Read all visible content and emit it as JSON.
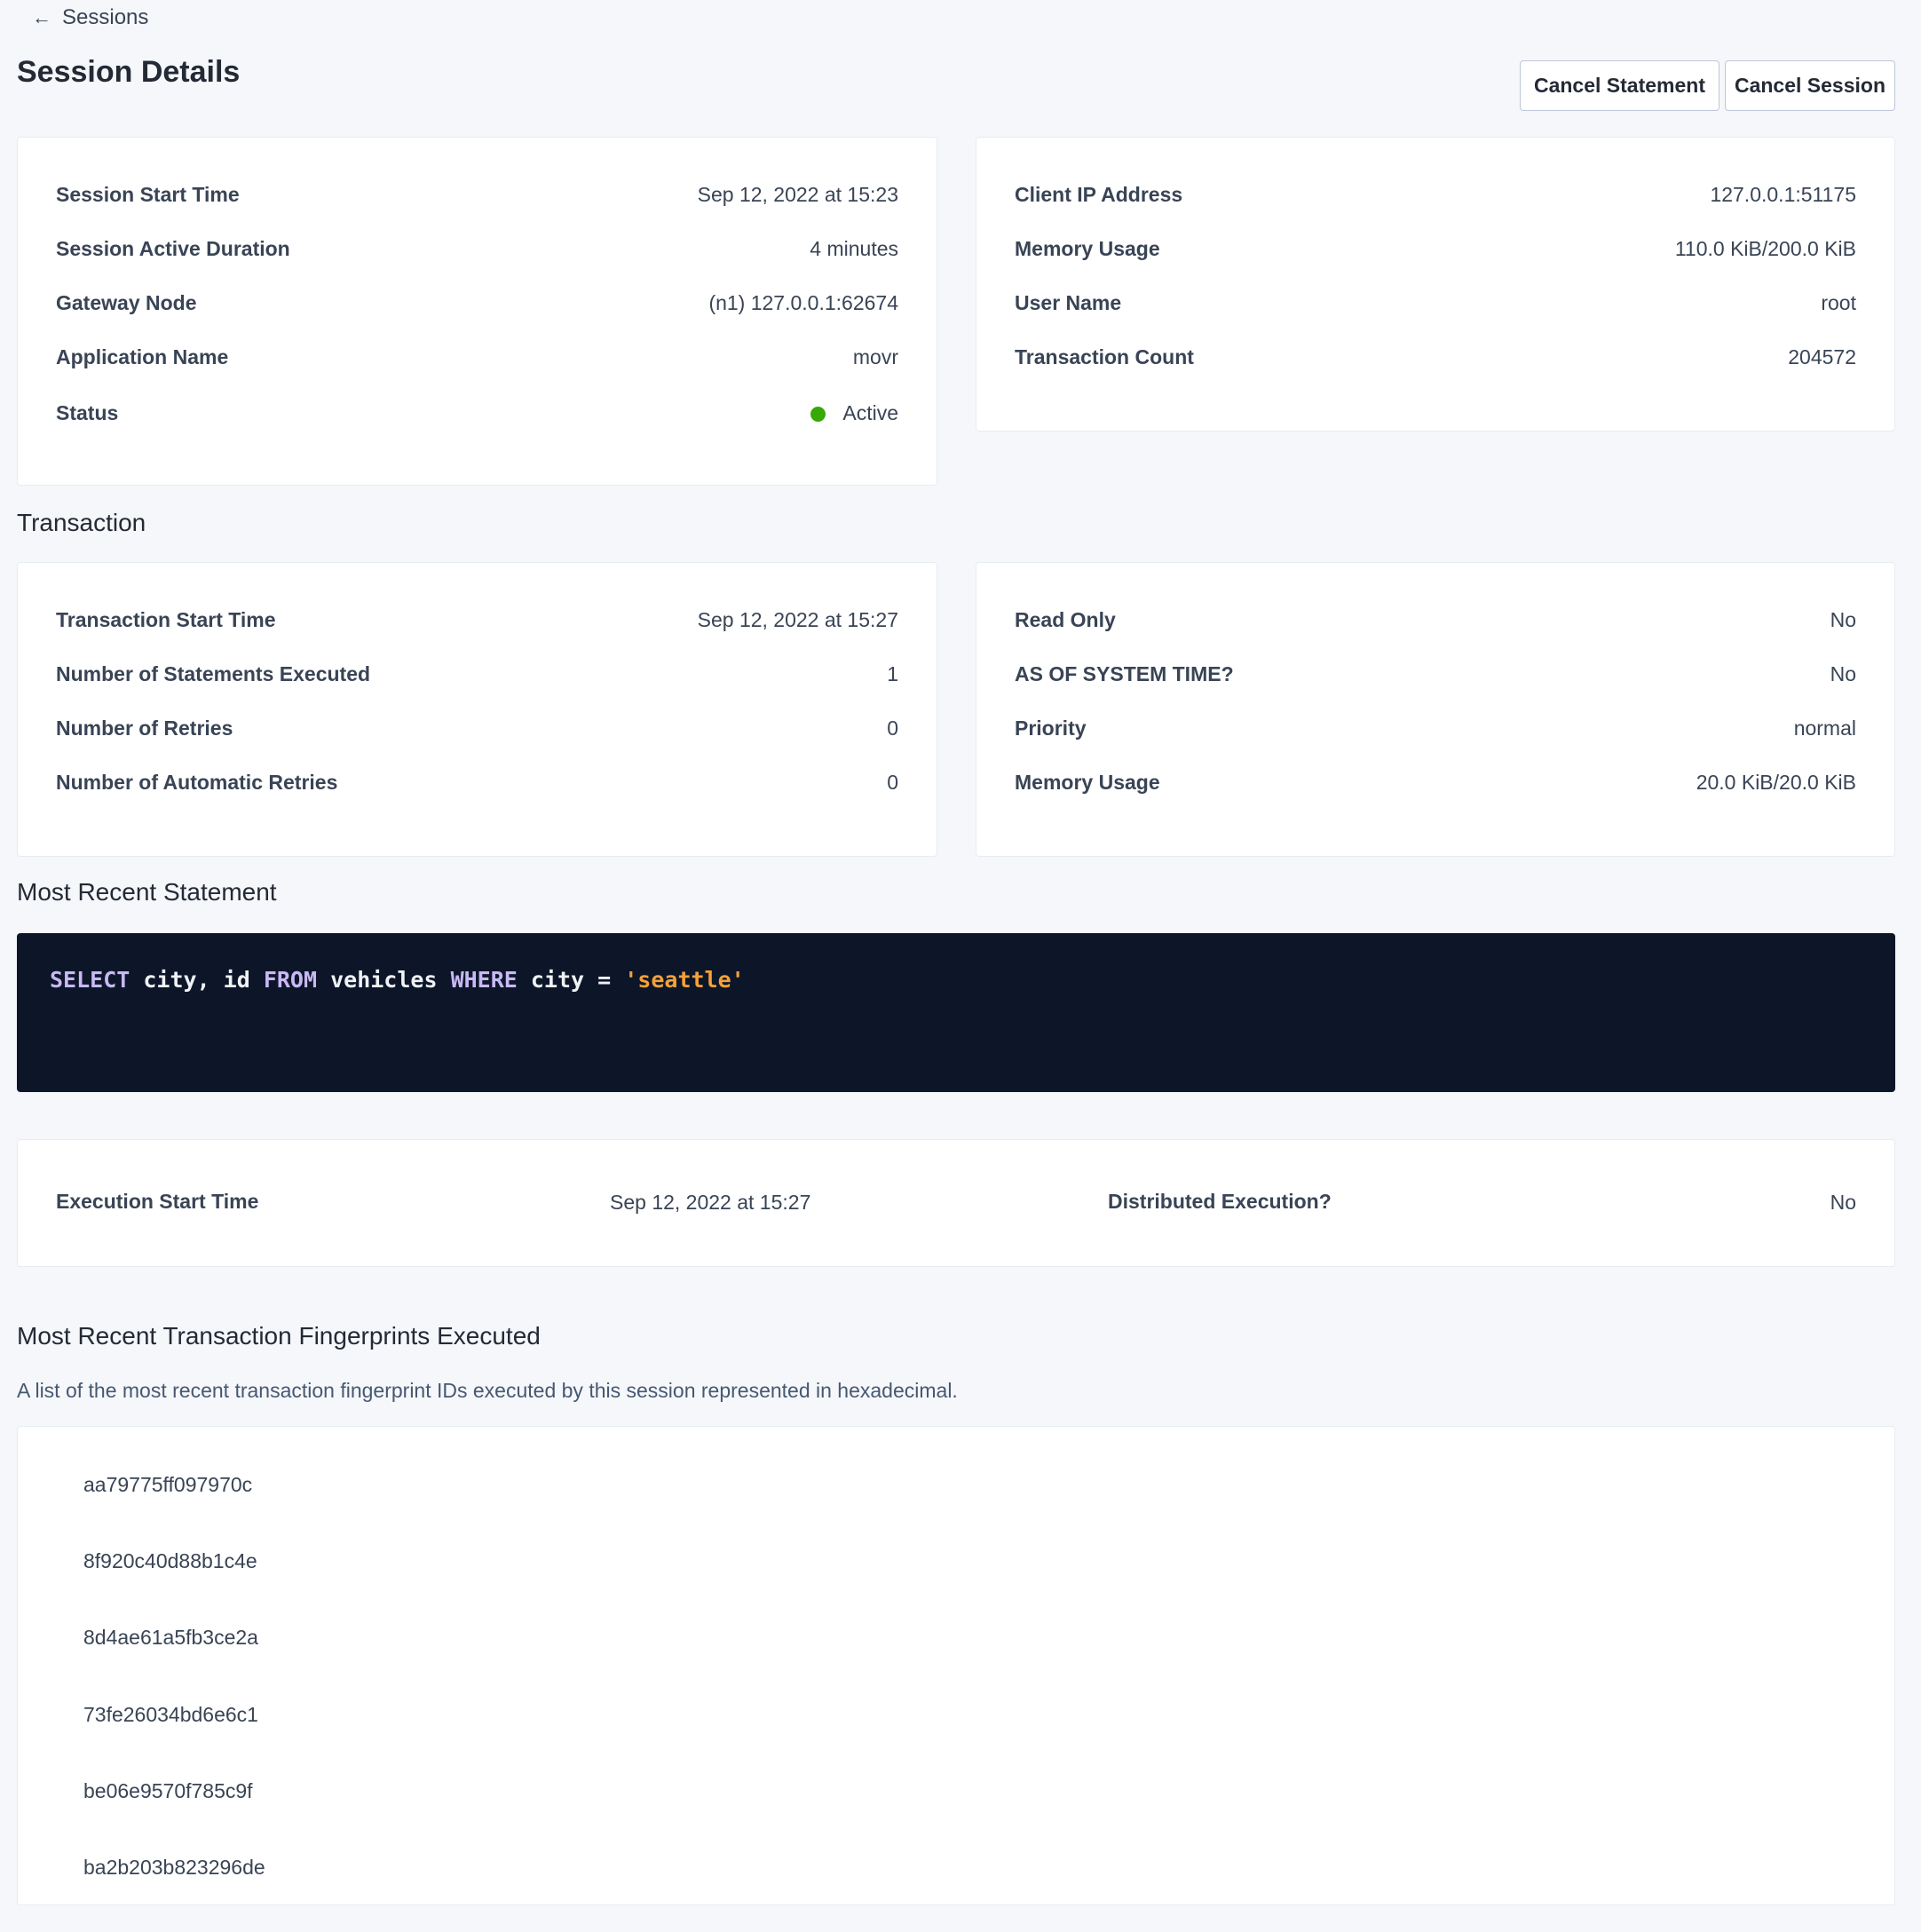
{
  "breadcrumb": {
    "back_label": "Sessions",
    "icon": "arrow-left-icon"
  },
  "page_title": "Session Details",
  "actions": {
    "cancel_statement": "Cancel Statement",
    "cancel_session": "Cancel Session"
  },
  "session_left": [
    {
      "label": "Session Start Time",
      "value": "Sep 12, 2022 at 15:23"
    },
    {
      "label": "Session Active Duration",
      "value": "4 minutes"
    },
    {
      "label": "Gateway Node",
      "value": "(n1) 127.0.0.1:62674"
    },
    {
      "label": "Application Name",
      "value": "movr"
    },
    {
      "label": "Status",
      "value": "Active"
    }
  ],
  "status_color": "#37a806",
  "link_color": "#0055ff",
  "session_right": [
    {
      "label": "Client IP Address",
      "value": "127.0.0.1:51175"
    },
    {
      "label": "Memory Usage",
      "value": "110.0 KiB/200.0 KiB"
    },
    {
      "label": "User Name",
      "value": "root"
    },
    {
      "label": "Transaction Count",
      "value": "204572"
    }
  ],
  "transaction": {
    "heading": "Transaction",
    "left": [
      {
        "label": "Transaction Start Time",
        "value": "Sep 12, 2022 at 15:27"
      },
      {
        "label": "Number of Statements Executed",
        "value": "1"
      },
      {
        "label": "Number of Retries",
        "value": "0"
      },
      {
        "label": "Number of Automatic Retries",
        "value": "0"
      }
    ],
    "right": [
      {
        "label": "Read Only",
        "value": "No"
      },
      {
        "label": "AS OF SYSTEM TIME?",
        "value": "No"
      },
      {
        "label": "Priority",
        "value": "normal"
      },
      {
        "label": "Memory Usage",
        "value": "20.0 KiB/20.0 KiB"
      }
    ]
  },
  "statement": {
    "heading": "Most Recent Statement",
    "sql_tokens": [
      {
        "t": "SELECT",
        "k": "kw"
      },
      {
        "t": " city, id ",
        "k": ""
      },
      {
        "t": "FROM",
        "k": "kw"
      },
      {
        "t": " vehicles ",
        "k": ""
      },
      {
        "t": "WHERE",
        "k": "kw"
      },
      {
        "t": " city = ",
        "k": ""
      },
      {
        "t": "'seattle'",
        "k": "str"
      }
    ],
    "execution_start_label": "Execution Start Time",
    "execution_start_value": "Sep 12, 2022 at 15:27",
    "distributed_label": "Distributed Execution?",
    "distributed_value": "No"
  },
  "fingerprints": {
    "heading": "Most Recent Transaction Fingerprints Executed",
    "description": "A list of the most recent transaction fingerprint IDs executed by this session represented in hexadecimal.",
    "items": [
      "aa79775ff097970c",
      "8f920c40d88b1c4e",
      "8d4ae61a5fb3ce2a",
      "73fe26034bd6e6c1",
      "be06e9570f785c9f",
      "ba2b203b823296de"
    ]
  }
}
